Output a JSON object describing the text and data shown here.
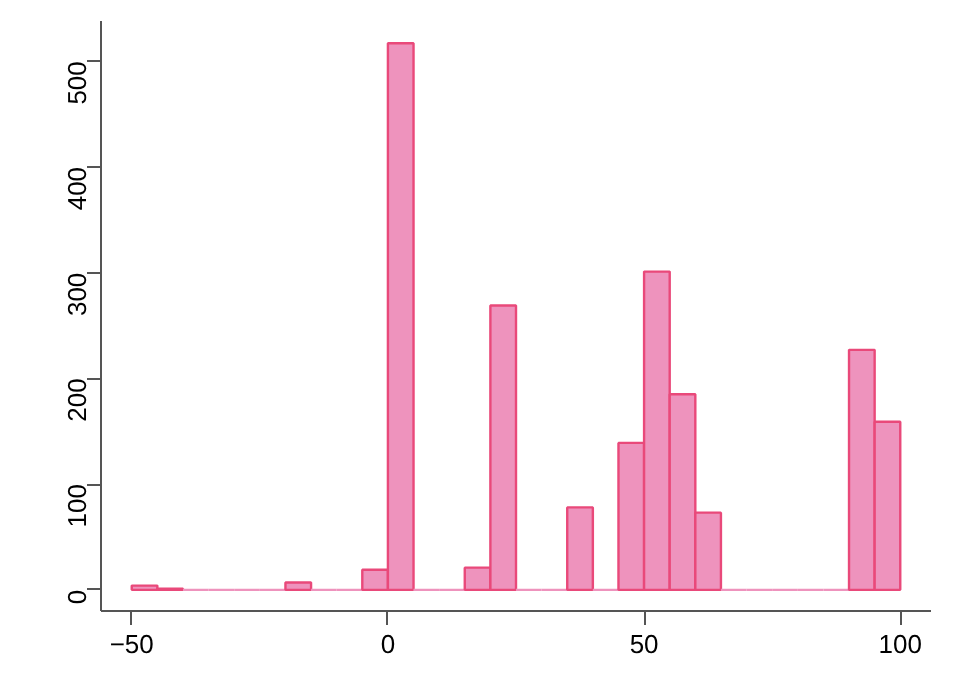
{
  "chart_data": {
    "type": "histogram",
    "bins": [
      -50,
      -45,
      -40,
      -35,
      -30,
      -25,
      -20,
      -15,
      -10,
      -5,
      0,
      5,
      10,
      15,
      20,
      25,
      30,
      35,
      40,
      45,
      50,
      55,
      60,
      65,
      70,
      75,
      80,
      85,
      90,
      95,
      100
    ],
    "values": [
      4,
      1,
      0,
      0,
      0,
      0,
      7,
      0,
      0,
      19,
      517,
      0,
      0,
      21,
      269,
      0,
      0,
      78,
      0,
      139,
      301,
      185,
      73,
      0,
      0,
      0,
      0,
      0,
      227,
      159
    ],
    "color": "#ee93bd",
    "xlim": [
      -56,
      106
    ],
    "ylim": [
      -20,
      538
    ],
    "xticks": [
      -50,
      0,
      50,
      100
    ],
    "yticks": [
      0,
      100,
      200,
      300,
      400,
      500
    ],
    "grid": false
  }
}
